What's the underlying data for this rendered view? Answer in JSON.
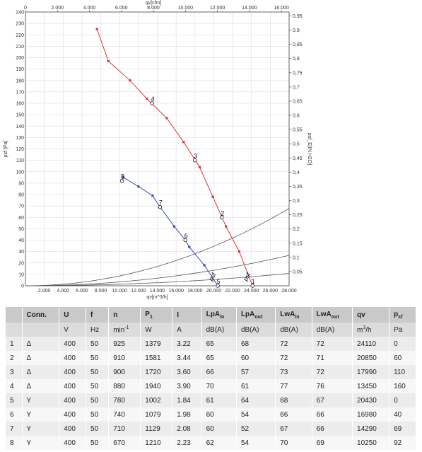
{
  "chart_data": {
    "type": "line",
    "x_bottom": {
      "label": "qv[m^3/h]",
      "range": [
        0,
        28000
      ],
      "ticks": [
        "2.000",
        "4.000",
        "6.000",
        "8.000",
        "10.000",
        "12.000",
        "14.000",
        "16.000",
        "18.000",
        "20.000",
        "22.000",
        "24.000",
        "26.000",
        "28.000"
      ]
    },
    "x_top": {
      "label": "qv[cfm]",
      "range": [
        0,
        16480
      ],
      "ticks": [
        "0",
        "2.000",
        "4.000",
        "6.000",
        "8.000",
        "10.000",
        "12.000",
        "14.000",
        "16.000"
      ]
    },
    "y_left": {
      "label": "psf [Pa]",
      "range": [
        0,
        240
      ],
      "ticks": [
        "0",
        "10",
        "20",
        "30",
        "40",
        "50",
        "60",
        "70",
        "80",
        "90",
        "100",
        "110",
        "120",
        "130",
        "140",
        "150",
        "160",
        "170",
        "180",
        "190",
        "200",
        "210",
        "220",
        "230",
        "240"
      ]
    },
    "y_right": {
      "label": "psf_E[IN H2O]",
      "range": [
        0,
        0.9637
      ],
      "ticks": [
        "0,05",
        "0,1",
        "0,15",
        "0,2",
        "0,25",
        "0,3",
        "0,35",
        "0,4",
        "0,45",
        "0,5",
        "0,55",
        "0,6",
        "0,65",
        "0,7",
        "0,75",
        "0,8",
        "0,85",
        "0,9",
        "0,95"
      ]
    },
    "grid": true,
    "series": [
      {
        "name": "psf",
        "color": "#d63a3a",
        "points": [
          [
            7600,
            225
          ],
          [
            8800,
            197
          ],
          [
            11100,
            180
          ],
          [
            12900,
            164
          ],
          [
            15000,
            147
          ],
          [
            16800,
            126
          ],
          [
            18500,
            104
          ],
          [
            19900,
            78
          ],
          [
            21300,
            52
          ],
          [
            22700,
            30
          ],
          [
            24110,
            0
          ]
        ]
      },
      {
        "name": "psf",
        "color": "#3a4fa8",
        "points": [
          [
            10250,
            92
          ],
          [
            10400,
            95
          ],
          [
            12000,
            87
          ],
          [
            13500,
            79
          ],
          [
            14290,
            69
          ],
          [
            15800,
            52
          ],
          [
            16980,
            40
          ],
          [
            17400,
            34
          ],
          [
            19000,
            18
          ],
          [
            20430,
            0
          ]
        ]
      }
    ],
    "system_curves": [
      {
        "k": 0.000865,
        "color": "#555555"
      },
      {
        "k": 0.00034,
        "color": "#555555"
      },
      {
        "k": 0.000138,
        "color": "#555555"
      }
    ],
    "operating_points": [
      {
        "label": "1",
        "x": 24110,
        "y": 0
      },
      {
        "label": "2",
        "x": 20850,
        "y": 60
      },
      {
        "label": "3",
        "x": 17990,
        "y": 110
      },
      {
        "label": "4",
        "x": 13450,
        "y": 160
      },
      {
        "label": "5",
        "x": 20430,
        "y": 0
      },
      {
        "label": "6",
        "x": 16980,
        "y": 40
      },
      {
        "label": "7",
        "x": 14290,
        "y": 69
      },
      {
        "label": "8",
        "x": 10250,
        "y": 92
      }
    ]
  },
  "table": {
    "headers": [
      "",
      "Conn.",
      "U",
      "f",
      "n",
      "P1",
      "I",
      "LpAin",
      "LpAout",
      "LwAin",
      "LwAout",
      "qv",
      "psf"
    ],
    "units": [
      "",
      "",
      "V",
      "Hz",
      "min-1",
      "W",
      "A",
      "dB(A)",
      "dB(A)",
      "dB(A)",
      "dB(A)",
      "m3/h",
      "Pa"
    ],
    "rows": [
      [
        "1",
        "Δ",
        "400",
        "50",
        "925",
        "1379",
        "3.22",
        "65",
        "68",
        "72",
        "72",
        "24110",
        "0"
      ],
      [
        "2",
        "Δ",
        "400",
        "50",
        "910",
        "1581",
        "3.44",
        "65",
        "60",
        "72",
        "71",
        "20850",
        "60"
      ],
      [
        "3",
        "Δ",
        "400",
        "50",
        "900",
        "1720",
        "3.60",
        "66",
        "57",
        "73",
        "72",
        "17990",
        "110"
      ],
      [
        "4",
        "Δ",
        "400",
        "50",
        "880",
        "1940",
        "3.90",
        "70",
        "61",
        "77",
        "76",
        "13450",
        "160"
      ],
      [
        "5",
        "Y",
        "400",
        "50",
        "780",
        "1002",
        "1.84",
        "61",
        "64",
        "68",
        "67",
        "20430",
        "0"
      ],
      [
        "6",
        "Y",
        "400",
        "50",
        "740",
        "1079",
        "1.98",
        "60",
        "54",
        "66",
        "66",
        "16980",
        "40"
      ],
      [
        "7",
        "Y",
        "400",
        "50",
        "710",
        "1129",
        "2.08",
        "60",
        "52",
        "67",
        "66",
        "14290",
        "69"
      ],
      [
        "8",
        "Y",
        "400",
        "50",
        "670",
        "1210",
        "2.23",
        "62",
        "54",
        "70",
        "69",
        "10250",
        "92"
      ]
    ]
  }
}
